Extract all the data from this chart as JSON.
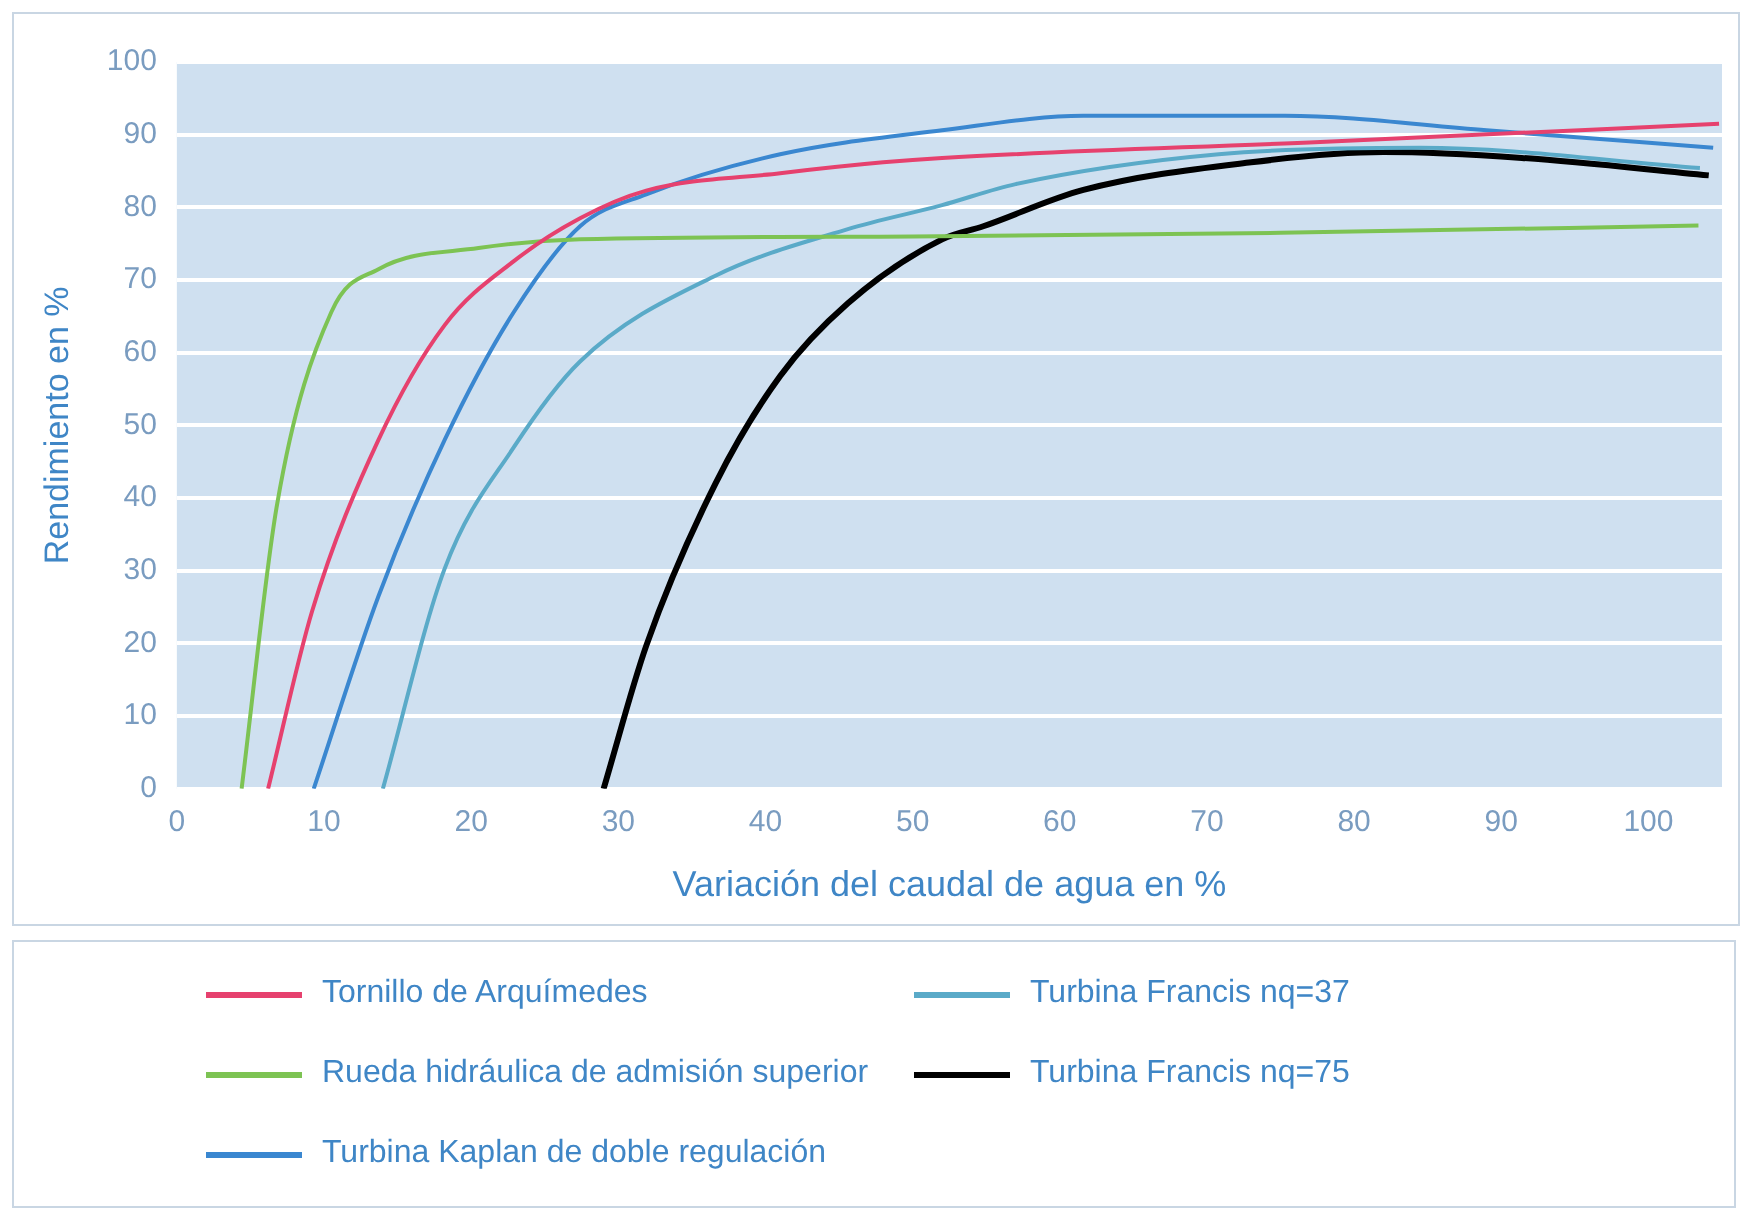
{
  "chart_data": {
    "type": "line",
    "xlabel": "Variación del caudal de agua en %",
    "ylabel": "Rendimiento en %",
    "xlim": [
      0,
      105
    ],
    "xticks": [
      0,
      10,
      20,
      30,
      40,
      50,
      60,
      70,
      80,
      90,
      100
    ],
    "ylim": [
      0,
      100
    ],
    "yticks": [
      0,
      10,
      20,
      30,
      40,
      50,
      60,
      70,
      80,
      90,
      100
    ],
    "grid": "y",
    "legend": "bottom",
    "marker": "none",
    "line_style": "solid",
    "series": [
      {
        "name": "Tornillo de Arquímedes",
        "color": "#e6416e",
        "x": [
          6.2,
          9.2,
          13.7,
          18.2,
          22.9,
          27.4,
          31.9,
          41,
          48,
          52,
          77.7,
          104.8
        ],
        "values": [
          0,
          24.5,
          48,
          63.8,
          72.6,
          78.5,
          82.3,
          84.7,
          86.2,
          86.8,
          89,
          91.5
        ]
      },
      {
        "name": "Rueda hidráulica de admisión superior",
        "color": "#7dc353",
        "x": [
          4.4,
          6.8,
          10.5,
          13.7,
          20.5,
          27.4,
          50,
          75,
          103.4
        ],
        "values": [
          0,
          39,
          65.6,
          71.5,
          74.4,
          75.6,
          76,
          76.5,
          77.5
        ]
      },
      {
        "name": "Turbina Kaplan de doble regulación",
        "color": "#3a87d0",
        "x": [
          9.3,
          13.7,
          18.2,
          22.9,
          27.4,
          31.9,
          41,
          52,
          61.6,
          75.3,
          89,
          104.4
        ],
        "values": [
          0,
          26.5,
          48,
          65.6,
          77.4,
          81.8,
          87.3,
          90.6,
          92.6,
          92.6,
          90.6,
          88.2
        ]
      },
      {
        "name": "Turbina Francis nq=37",
        "color": "#5aaac8",
        "x": [
          14,
          18.2,
          22.9,
          27.4,
          36.6,
          45.6,
          52,
          57,
          70.8,
          84.5,
          103.5
        ],
        "values": [
          0,
          30.3,
          47,
          58.8,
          70.6,
          77,
          80.3,
          83.2,
          87.3,
          88.2,
          85.4
        ]
      },
      {
        "name": "Turbina Francis nq=75",
        "color": "#000000",
        "x": [
          29,
          31.9,
          36.6,
          41,
          45.6,
          52,
          54.8,
          61.6,
          73,
          82,
          91.4,
          104.1
        ],
        "values": [
          0,
          19.7,
          42,
          56.8,
          66.8,
          75.6,
          77.4,
          82.4,
          86.2,
          87.6,
          86.8,
          84.4
        ]
      }
    ]
  }
}
